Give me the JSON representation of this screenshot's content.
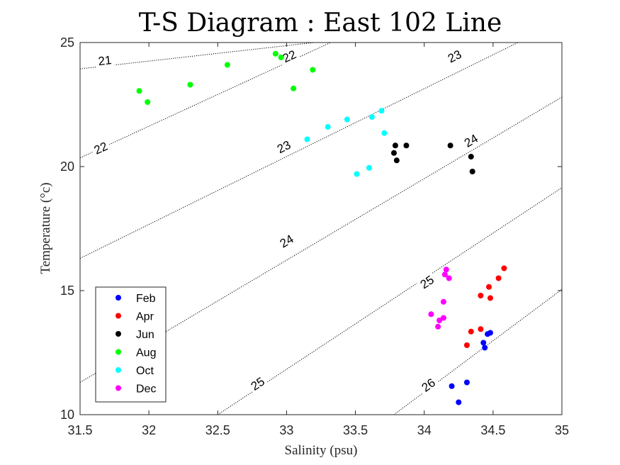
{
  "chart_data": {
    "type": "scatter",
    "title": "T-S Diagram : East 102 Line",
    "xlabel": "Salinity (psu)",
    "ylabel": "Temperature (°c)",
    "xlim": [
      31.5,
      35
    ],
    "ylim": [
      10,
      25
    ],
    "xticks": [
      31.5,
      32,
      32.5,
      33,
      33.5,
      34,
      34.5,
      35
    ],
    "yticks": [
      10,
      15,
      20,
      25
    ],
    "xtick_labels": [
      "31.5",
      "32",
      "32.5",
      "33",
      "33.5",
      "34",
      "34.5",
      "35"
    ],
    "ytick_labels": [
      "10",
      "15",
      "20",
      "25"
    ],
    "grid": false,
    "legend_position": "bottom-left",
    "contours": [
      {
        "label": "21",
        "points": [
          [
            31.5,
            23.94
          ],
          [
            33.2,
            25.0
          ]
        ],
        "label_at": [
          [
            31.68,
            24.28
          ]
        ]
      },
      {
        "label": "22",
        "points": [
          [
            31.5,
            20.35
          ],
          [
            33.32,
            25.0
          ]
        ],
        "label_at": [
          [
            31.65,
            20.75
          ],
          [
            33.02,
            24.45
          ]
        ]
      },
      {
        "label": "23",
        "points": [
          [
            31.5,
            16.3
          ],
          [
            34.68,
            25.0
          ]
        ],
        "label_at": [
          [
            32.98,
            20.8
          ],
          [
            34.22,
            24.45
          ]
        ]
      },
      {
        "label": "24",
        "points": [
          [
            31.5,
            11.3
          ],
          [
            35.0,
            22.8
          ]
        ],
        "label_at": [
          [
            33.0,
            17.0
          ],
          [
            34.34,
            21.05
          ]
        ]
      },
      {
        "label": "25",
        "points": [
          [
            32.5,
            10.0
          ],
          [
            35.0,
            19.15
          ]
        ],
        "label_at": [
          [
            32.79,
            11.25
          ],
          [
            34.02,
            15.35
          ]
        ]
      },
      {
        "label": "26",
        "points": [
          [
            33.78,
            10.0
          ],
          [
            35.0,
            15.05
          ]
        ],
        "label_at": [
          [
            34.03,
            11.2
          ]
        ]
      }
    ],
    "series": [
      {
        "name": "Feb",
        "color": "#0000ff",
        "points": [
          [
            34.2,
            11.15
          ],
          [
            34.25,
            10.5
          ],
          [
            34.31,
            11.3
          ],
          [
            34.43,
            12.9
          ],
          [
            34.44,
            12.7
          ],
          [
            34.46,
            13.25
          ],
          [
            34.48,
            13.3
          ]
        ]
      },
      {
        "name": "Apr",
        "color": "#ff0000",
        "points": [
          [
            34.31,
            12.8
          ],
          [
            34.34,
            13.35
          ],
          [
            34.41,
            13.45
          ],
          [
            34.41,
            14.8
          ],
          [
            34.47,
            15.15
          ],
          [
            34.48,
            14.7
          ],
          [
            34.54,
            15.5
          ],
          [
            34.58,
            15.9
          ]
        ]
      },
      {
        "name": "Jun",
        "color": "#000000",
        "points": [
          [
            33.78,
            20.55
          ],
          [
            33.79,
            20.85
          ],
          [
            33.8,
            20.25
          ],
          [
            33.87,
            20.85
          ],
          [
            34.19,
            20.85
          ],
          [
            34.34,
            20.4
          ],
          [
            34.35,
            19.8
          ]
        ]
      },
      {
        "name": "Aug",
        "color": "#00ff00",
        "points": [
          [
            31.93,
            23.05
          ],
          [
            31.99,
            22.6
          ],
          [
            32.3,
            23.3
          ],
          [
            32.57,
            24.1
          ],
          [
            32.92,
            24.55
          ],
          [
            32.96,
            24.4
          ],
          [
            33.05,
            23.15
          ],
          [
            33.19,
            23.9
          ]
        ]
      },
      {
        "name": "Oct",
        "color": "#00ffff",
        "points": [
          [
            33.15,
            21.1
          ],
          [
            33.3,
            21.6
          ],
          [
            33.44,
            21.9
          ],
          [
            33.51,
            19.7
          ],
          [
            33.6,
            19.95
          ],
          [
            33.62,
            22.0
          ],
          [
            33.69,
            22.25
          ],
          [
            33.71,
            21.35
          ]
        ]
      },
      {
        "name": "Dec",
        "color": "#ff00ff",
        "points": [
          [
            34.05,
            14.05
          ],
          [
            34.1,
            13.55
          ],
          [
            34.11,
            13.8
          ],
          [
            34.14,
            13.9
          ],
          [
            34.14,
            14.55
          ],
          [
            34.15,
            15.65
          ],
          [
            34.16,
            15.85
          ],
          [
            34.18,
            15.5
          ]
        ]
      }
    ]
  }
}
